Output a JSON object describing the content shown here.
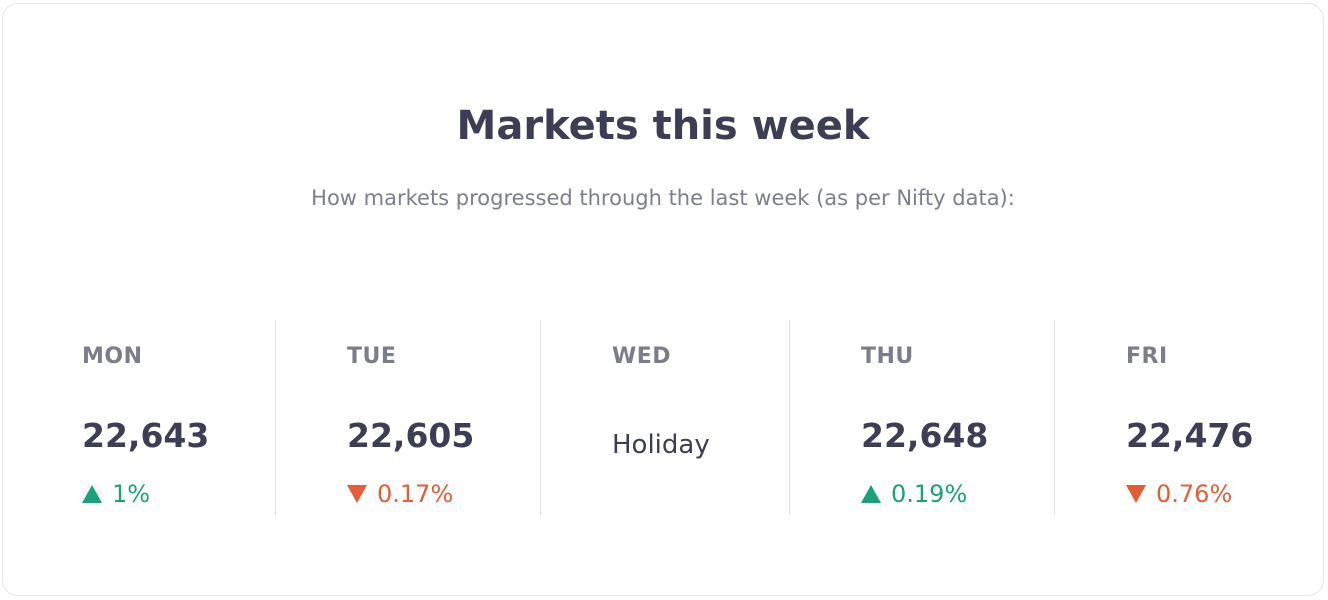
{
  "card": {
    "title": "Markets this week",
    "subtitle": "How markets progressed through the last week (as per Nifty data):"
  },
  "colors": {
    "up": "#1aa37a",
    "down": "#e65c36",
    "text": "#3d3e55",
    "muted": "#7c7e8c"
  },
  "days": [
    {
      "label": "MON",
      "value": "22,643",
      "direction": "up",
      "change": "1%",
      "icon": "triangle-up-icon"
    },
    {
      "label": "TUE",
      "value": "22,605",
      "direction": "down",
      "change": "0.17%",
      "icon": "triangle-down-icon"
    },
    {
      "label": "WED",
      "value": "Holiday"
    },
    {
      "label": "THU",
      "value": "22,648",
      "direction": "up",
      "change": "0.19%",
      "icon": "triangle-up-icon"
    },
    {
      "label": "FRI",
      "value": "22,476",
      "direction": "down",
      "change": "0.76%",
      "icon": "triangle-down-icon"
    }
  ]
}
